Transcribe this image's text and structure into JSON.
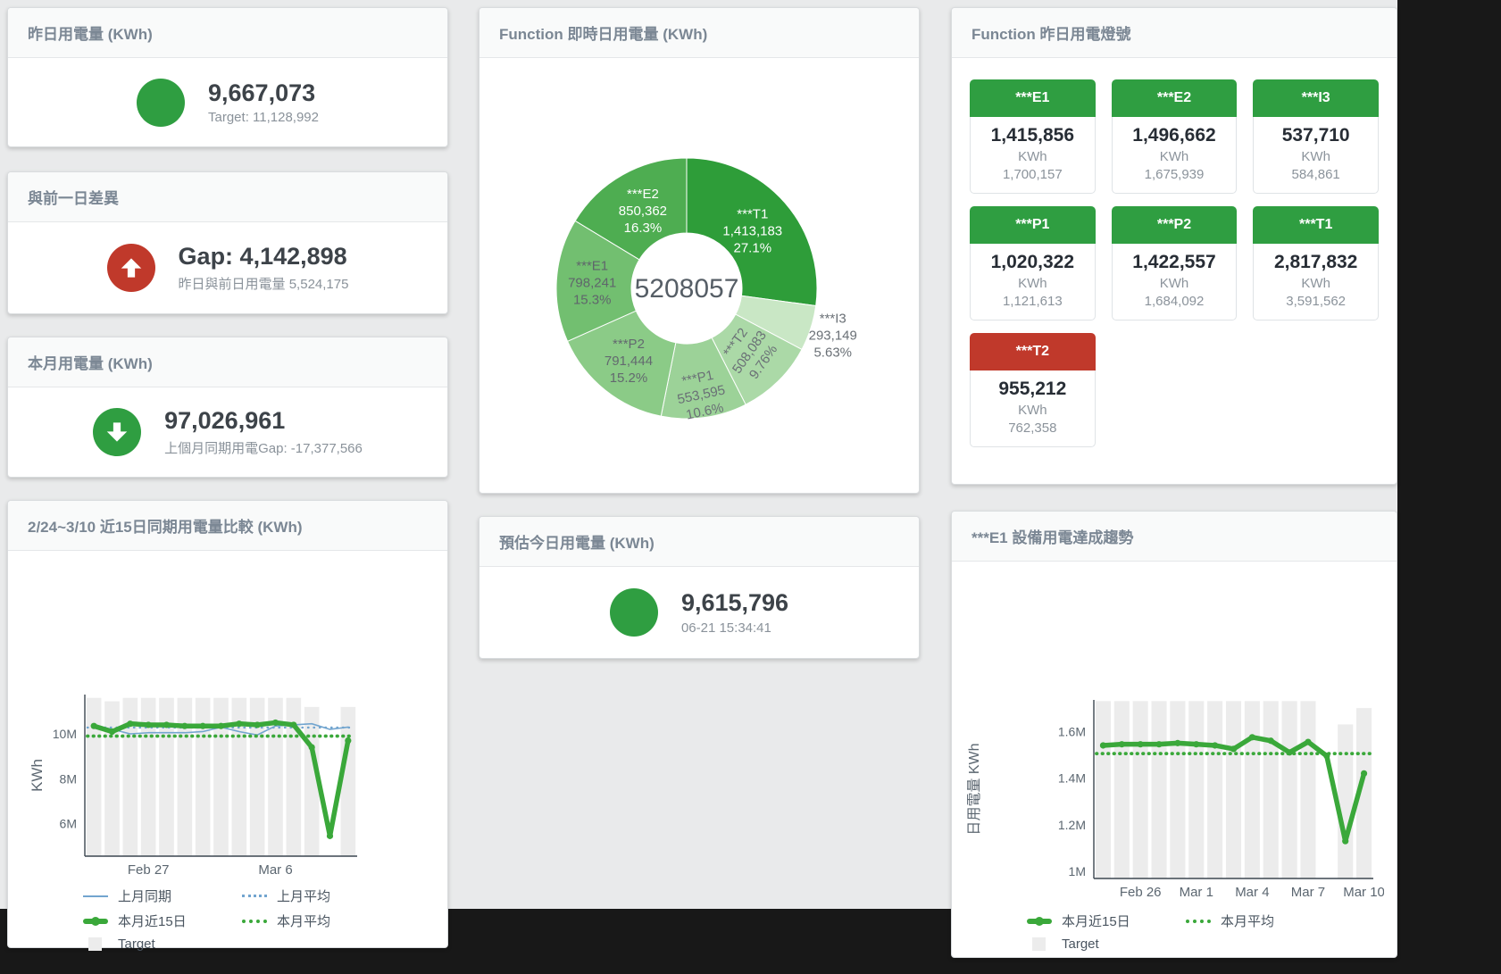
{
  "palette": {
    "green": "#2f9e41",
    "red": "#c0392b",
    "line_green": "#3aa83a",
    "line_blue": "#72a5cf",
    "target_gray": "#ececec"
  },
  "cards": {
    "yesterday": {
      "title": "昨日用電量 (KWh)",
      "value": "9,667,073",
      "subtitle": "Target: 11,128,992",
      "indicator_color": "#2f9e41"
    },
    "day_gap": {
      "title": "與前一日差異",
      "value": "Gap: 4,142,898",
      "subtitle": "昨日與前日用電量 5,524,175",
      "indicator_color": "#c0392b"
    },
    "month": {
      "title": "本月用電量 (KWh)",
      "value": "97,026,961",
      "subtitle": "上個月同期用電Gap: -17,377,566",
      "indicator_color": "#2f9e41"
    },
    "estimate": {
      "title": "預估今日用電量 (KWh)",
      "value": "9,615,796",
      "subtitle": "06-21 15:34:41",
      "indicator_color": "#2f9e41"
    },
    "realtime": {
      "title": "Function 即時日用電量 (KWh)"
    },
    "lights": {
      "title": "Function 昨日用電燈號",
      "tiles": [
        {
          "name": "***E1",
          "value": "1,415,856",
          "unit": "KWh",
          "target": "1,700,157",
          "status": "green"
        },
        {
          "name": "***E2",
          "value": "1,496,662",
          "unit": "KWh",
          "target": "1,675,939",
          "status": "green"
        },
        {
          "name": "***I3",
          "value": "537,710",
          "unit": "KWh",
          "target": "584,861",
          "status": "green"
        },
        {
          "name": "***P1",
          "value": "1,020,322",
          "unit": "KWh",
          "target": "1,121,613",
          "status": "green"
        },
        {
          "name": "***P2",
          "value": "1,422,557",
          "unit": "KWh",
          "target": "1,684,092",
          "status": "green"
        },
        {
          "name": "***T1",
          "value": "2,817,832",
          "unit": "KWh",
          "target": "3,591,562",
          "status": "green"
        },
        {
          "name": "***T2",
          "value": "955,212",
          "unit": "KWh",
          "target": "762,358",
          "status": "red"
        }
      ]
    },
    "compare": {
      "title": "2/24~3/10 近15日同期用電量比較 (KWh)"
    },
    "e1_trend": {
      "title": "***E1 設備用電達成趨勢"
    }
  },
  "chart_data": [
    {
      "id": "realtime_donut",
      "type": "pie",
      "title": "Function 即時日用電量 (KWh)",
      "center_label": "5208057",
      "total": 5208057,
      "slices": [
        {
          "name": "***T1",
          "value": 1413183,
          "value_label": "1,413,183",
          "pct": "27.1%",
          "color": "#2e9d39",
          "text_color": "#ffffff",
          "label_r": 98,
          "rotate": 0
        },
        {
          "name": "***I3",
          "value": 293149,
          "value_label": "293,149",
          "pct": "5.63%",
          "color": "#c9e7c5",
          "text_color": "#6a7076",
          "label_r": 172,
          "rotate": 0
        },
        {
          "name": "***T2",
          "value": 508083,
          "value_label": "508,083",
          "pct": "9.76%",
          "color": "#abd9a7",
          "text_color": "#6a7076",
          "label_r": 100,
          "rotate": -55
        },
        {
          "name": "***P1",
          "value": 553595,
          "value_label": "553,595",
          "pct": "10.6%",
          "color": "#9cd298",
          "text_color": "#6a7076",
          "label_r": 120,
          "rotate": -12
        },
        {
          "name": "***P2",
          "value": 791444,
          "value_label": "791,444",
          "pct": "15.2%",
          "color": "#8bcb87",
          "text_color": "#63696f",
          "label_r": 104,
          "rotate": 0
        },
        {
          "name": "***E1",
          "value": 798241,
          "value_label": "798,241",
          "pct": "15.3%",
          "color": "#72bf70",
          "text_color": "#5f656b",
          "label_r": 106,
          "rotate": 0
        },
        {
          "name": "***E2",
          "value": 850362,
          "value_label": "850,362",
          "pct": "16.3%",
          "color": "#4ead51",
          "text_color": "#ffffff",
          "label_r": 100,
          "rotate": 0
        }
      ]
    },
    {
      "id": "compare15",
      "type": "line",
      "title": "2/24~3/10 近15日同期用電量比較 (KWh)",
      "ylabel": "KWh",
      "ylim": [
        4.55,
        11.75
      ],
      "yticks": [
        {
          "v": 6,
          "label": "6M"
        },
        {
          "v": 8,
          "label": "8M"
        },
        {
          "v": 10,
          "label": "10M"
        }
      ],
      "xticks": [
        {
          "index": 3,
          "label": "Feb 27"
        },
        {
          "index": 10,
          "label": "Mar 6"
        }
      ],
      "bar_color": "#ececec",
      "target_bars": [
        11.6,
        11.45,
        11.6,
        11.6,
        11.6,
        11.6,
        11.6,
        11.6,
        11.6,
        11.6,
        11.6,
        11.6,
        11.2,
        null,
        11.2
      ],
      "series": [
        {
          "name": "上月同期",
          "style": "thin",
          "color": "#72a5cf",
          "values": [
            10.4,
            10.2,
            10.0,
            10.05,
            10.05,
            10.05,
            10.1,
            10.3,
            10.1,
            9.95,
            10.35,
            10.4,
            10.45,
            10.2,
            10.3
          ]
        },
        {
          "name": "上月平均",
          "style": "dotted",
          "color": "#72a5cf",
          "constant": 10.28
        },
        {
          "name": "本月近15日",
          "style": "thick",
          "color": "#3aa83a",
          "values": [
            10.35,
            10.1,
            10.45,
            10.4,
            10.4,
            10.35,
            10.35,
            10.35,
            10.45,
            10.4,
            10.5,
            10.4,
            9.4,
            5.45,
            9.7
          ]
        },
        {
          "name": "本月平均",
          "style": "dotted-thick",
          "color": "#3aa83a",
          "constant": 9.9
        }
      ],
      "legend": [
        {
          "label": "上月同期",
          "type": "line",
          "color": "#72a5cf"
        },
        {
          "label": "上月平均",
          "type": "dotted",
          "color": "#72a5cf"
        },
        {
          "label": "本月近15日",
          "type": "thick",
          "color": "#3aa83a"
        },
        {
          "label": "本月平均",
          "type": "dotted-thick",
          "color": "#3aa83a"
        },
        {
          "label": "Target",
          "type": "box",
          "color": "#ececec"
        }
      ]
    },
    {
      "id": "e1_trend",
      "type": "line",
      "title": "***E1 設備用電達成趨勢",
      "ylabel": "日用電量 KWh",
      "ylim": [
        0.97,
        1.735
      ],
      "yticks": [
        {
          "v": 1,
          "label": "1M"
        },
        {
          "v": 1.2,
          "label": "1.2M"
        },
        {
          "v": 1.4,
          "label": "1.4M"
        },
        {
          "v": 1.6,
          "label": "1.6M"
        }
      ],
      "xticks": [
        {
          "index": 2,
          "label": "Feb 26"
        },
        {
          "index": 5,
          "label": "Mar 1"
        },
        {
          "index": 8,
          "label": "Mar 4"
        },
        {
          "index": 11,
          "label": "Mar 7"
        },
        {
          "index": 14,
          "label": "Mar 10"
        }
      ],
      "bar_color": "#ececec",
      "target_bars": [
        1.73,
        1.73,
        1.73,
        1.73,
        1.73,
        1.73,
        1.73,
        1.73,
        1.73,
        1.73,
        1.73,
        1.73,
        null,
        1.63,
        1.7
      ],
      "series": [
        {
          "name": "本月近15日",
          "style": "thick",
          "color": "#3aa83a",
          "values": [
            1.54,
            1.545,
            1.545,
            1.545,
            1.55,
            1.545,
            1.54,
            1.525,
            1.575,
            1.56,
            1.51,
            1.555,
            1.495,
            1.13,
            1.42
          ]
        },
        {
          "name": "本月平均",
          "style": "dotted-thick",
          "color": "#3aa83a",
          "constant": 1.505
        }
      ],
      "legend": [
        {
          "label": "本月近15日",
          "type": "thick",
          "color": "#3aa83a"
        },
        {
          "label": "本月平均",
          "type": "dotted-thick",
          "color": "#3aa83a"
        },
        {
          "label": "Target",
          "type": "box",
          "color": "#ececec"
        }
      ]
    }
  ]
}
